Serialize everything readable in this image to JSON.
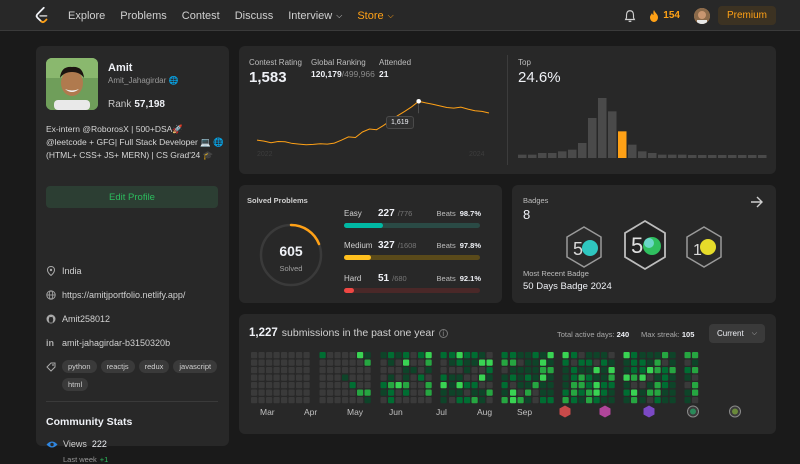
{
  "topbar": {
    "nav": [
      "Explore",
      "Problems",
      "Contest",
      "Discuss",
      "Interview",
      "Store"
    ],
    "streak": "154",
    "premium": "Premium"
  },
  "profile": {
    "name": "Amit",
    "handle": "Amit_Jahagirdar",
    "rank_label": "Rank",
    "rank_value": "57,198",
    "bio": "Ex-intern @RoborosX | 500+DSA🚀 @leetcode + GFG| Full Stack Developer 💻 🌐(HTML+ CSS+ JS+ MERN) | CS Grad'24 🎓",
    "edit_label": "Edit Profile",
    "location": "India",
    "website": "https://amitjportfolio.netlify.app/",
    "github": "Amit258012",
    "linkedin": "amit-jahagirdar-b3150320b",
    "tags": [
      "python",
      "reactjs",
      "redux",
      "javascript",
      "html"
    ]
  },
  "community": {
    "title": "Community Stats",
    "views_label": "Views",
    "views_value": "222",
    "last_week_label": "Last week",
    "last_week_delta": "+1"
  },
  "contest": {
    "rating_label": "Contest Rating",
    "rating": "1,583",
    "global_label": "Global Ranking",
    "global_rank": "120,179",
    "global_total": "/499,966",
    "attended_label": "Attended",
    "attended": "21",
    "tooltip": "1,619",
    "top_label": "Top",
    "top_value": "24.6%",
    "rating_history": [
      1500,
      1497,
      1492,
      1496,
      1495,
      1490,
      1488,
      1486,
      1487,
      1489,
      1488,
      1491,
      1500,
      1510,
      1508,
      1525,
      1534,
      1532,
      1545,
      1560,
      1575,
      1588,
      1602,
      1619,
      1614,
      1610,
      1605,
      1600,
      1598,
      1601,
      1595,
      1590,
      1588,
      1583
    ],
    "histogram": [
      2,
      2,
      3,
      3,
      4,
      5,
      9,
      24,
      36,
      28,
      16,
      8,
      4,
      3,
      2,
      2,
      2,
      1.5,
      1.5,
      1.5,
      1.5,
      1.5,
      1.5,
      1.5,
      1.5
    ],
    "histogram_highlight": 10,
    "accent": "#ffa116"
  },
  "solved": {
    "title": "Solved Problems",
    "total": "605",
    "total_label": "Solved",
    "beats_label": "Beats",
    "easy": {
      "label": "Easy",
      "count": "227",
      "total": "/776",
      "beats": "98.7%",
      "frac": 0.29,
      "color": "#00b8a3",
      "track": "#2a4a45"
    },
    "medium": {
      "label": "Medium",
      "count": "327",
      "total": "/1608",
      "beats": "97.8%",
      "frac": 0.2,
      "color": "#ffc01e",
      "track": "#5a4a1a"
    },
    "hard": {
      "label": "Hard",
      "count": "51",
      "total": "/680",
      "beats": "92.1%",
      "frac": 0.075,
      "color": "#ef4743",
      "track": "#4a2828"
    }
  },
  "badges": {
    "title": "Badges",
    "count": "8",
    "recent_label": "Most Recent Badge",
    "recent": "50 Days Badge 2024"
  },
  "submissions": {
    "count": "1,227",
    "text": "submissions in the past one year",
    "active_label": "Total active days:",
    "active_value": "240",
    "streak_label": "Max streak:",
    "streak_value": "105",
    "dropdown": "Current",
    "months": [
      "Mar",
      "Apr",
      "May",
      "Jun",
      "Jul",
      "Aug",
      "Sep"
    ]
  }
}
